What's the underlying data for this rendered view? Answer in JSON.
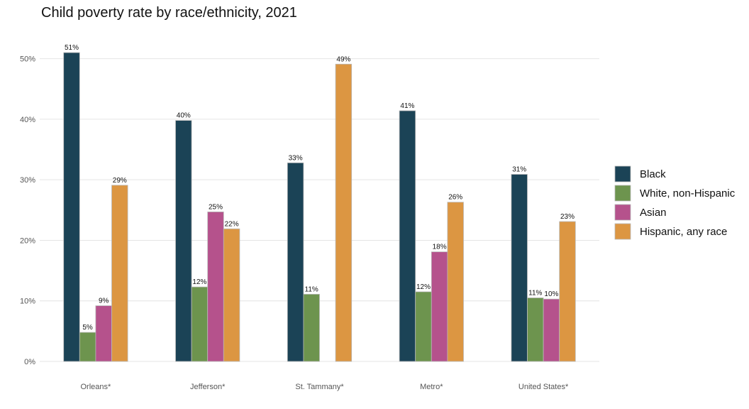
{
  "chart_data": {
    "type": "bar",
    "title": "Child poverty rate by race/ethnicity, 2021",
    "xlabel": "",
    "ylabel": "",
    "ylim": [
      0,
      55
    ],
    "yticks": [
      0,
      10,
      20,
      30,
      40,
      50
    ],
    "ytick_labels": [
      "0%",
      "10%",
      "20%",
      "30%",
      "40%",
      "50%"
    ],
    "categories": [
      "Orleans*",
      "Jefferson*",
      "St. Tammany*",
      "Metro*",
      "United States*"
    ],
    "series": [
      {
        "name": "Black",
        "color": "#1b4356",
        "values": [
          51,
          39.8,
          32.8,
          41.4,
          30.9
        ],
        "labels": [
          "51%",
          "40%",
          "33%",
          "41%",
          "31%"
        ]
      },
      {
        "name": "White, non-Hispanic",
        "color": "#6d944e",
        "values": [
          4.8,
          12.3,
          11.1,
          11.5,
          10.5
        ],
        "labels": [
          "5%",
          "12%",
          "11%",
          "12%",
          "11%"
        ]
      },
      {
        "name": "Asian",
        "color": "#b5528c",
        "values": [
          9.2,
          24.7,
          null,
          18.1,
          10.3
        ],
        "labels": [
          "9%",
          "25%",
          "",
          "18%",
          "10%"
        ]
      },
      {
        "name": "Hispanic, any race",
        "color": "#dc9642",
        "values": [
          29.1,
          21.9,
          49.1,
          26.3,
          23.1
        ],
        "labels": [
          "29%",
          "22%",
          "49%",
          "26%",
          "23%"
        ]
      }
    ],
    "grid": true,
    "legend_position": "right"
  }
}
